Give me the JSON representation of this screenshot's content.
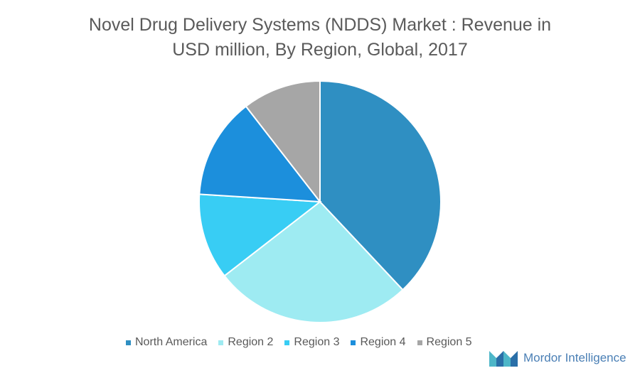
{
  "chart_data": {
    "type": "pie",
    "title_line1": "Novel Drug Delivery Systems (NDDS) Market : Revenue in",
    "title_line2": "USD million, By Region, Global, 2017",
    "slices": [
      {
        "name": "North America",
        "value": 38,
        "color": "#2f8fc2"
      },
      {
        "name": "Region 2",
        "value": 26.5,
        "color": "#9eebf2"
      },
      {
        "name": "Region 3",
        "value": 11.5,
        "color": "#38cdf4"
      },
      {
        "name": "Region 4",
        "value": 13.5,
        "color": "#1c8fdc"
      },
      {
        "name": "Region 5",
        "value": 10.5,
        "color": "#a6a6a6"
      }
    ],
    "start_angle_deg": 0,
    "direction": "clockwise",
    "legend_position": "bottom"
  },
  "brand": {
    "name": "Mordor Intelligence"
  }
}
